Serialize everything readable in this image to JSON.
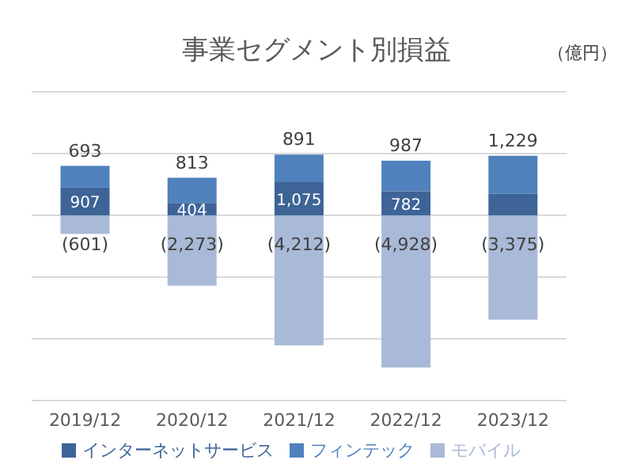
{
  "chart_data": {
    "type": "bar",
    "title": "事業セグメント別損益",
    "annotations": [
      "（億円）"
    ],
    "categories": [
      "2019/12",
      "2020/12",
      "2021/12",
      "2022/12",
      "2023/12"
    ],
    "stacked": true,
    "series": [
      {
        "name": "インターネットサービス",
        "color": "#3e6497",
        "values": [
          907,
          404,
          1075,
          782,
          700
        ],
        "value_labels": [
          "907",
          "404",
          "1,075",
          "782",
          null
        ]
      },
      {
        "name": "フィンテック",
        "color": "#4f81bd",
        "values": [
          693,
          813,
          891,
          987,
          1229
        ],
        "value_labels": [
          "693",
          "813",
          "891",
          "987",
          "1,229"
        ]
      },
      {
        "name": "モバイル",
        "color": "#a9b9d8",
        "values": [
          -601,
          -2273,
          -4212,
          -4928,
          -3375
        ],
        "value_labels": [
          "(601)",
          "(2,273)",
          "(4,212)",
          "(4,928)",
          "(3,375)"
        ]
      }
    ],
    "tick_labels": "x",
    "grid": "y",
    "legend": "bottom"
  }
}
